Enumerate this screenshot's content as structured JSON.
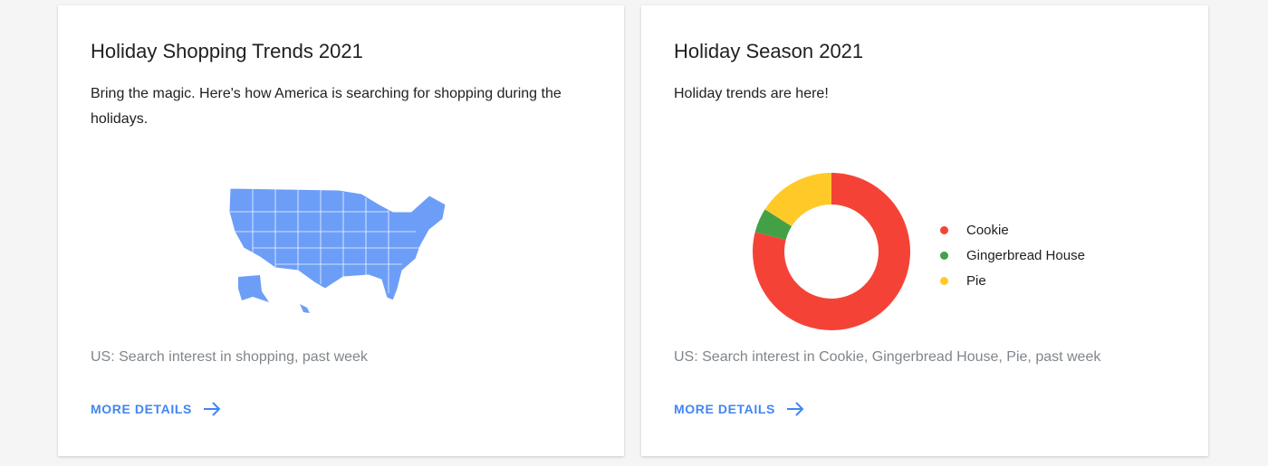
{
  "cards": [
    {
      "title": "Holiday Shopping Trends 2021",
      "description": "Bring the magic. Here's how America is searching for shopping during the holidays.",
      "footnote": "US: Search interest in shopping, past week",
      "more_label": "MORE DETAILS",
      "map_color": "#6c9ef8"
    },
    {
      "title": "Holiday Season 2021",
      "description": "Holiday trends are here!",
      "footnote": "US: Search interest in Cookie, Gingerbread House, Pie, past week",
      "more_label": "MORE DETAILS"
    }
  ],
  "chart_data": {
    "type": "pie",
    "donut": true,
    "categories": [
      "Cookie",
      "Gingerbread House",
      "Pie"
    ],
    "values": [
      79,
      5,
      16
    ],
    "colors": [
      "#f44336",
      "#43a047",
      "#ffca28"
    ],
    "legend": "right"
  },
  "accent": "#4285f4"
}
